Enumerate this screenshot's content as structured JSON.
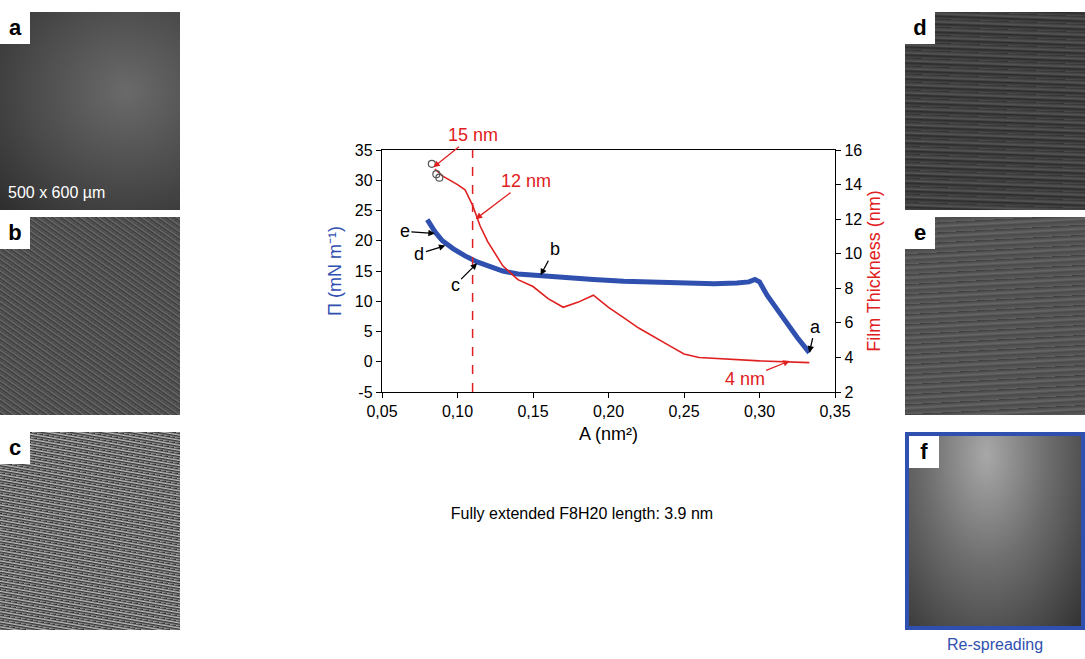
{
  "chart_data": {
    "type": "line",
    "xlabel": "A (nm²)",
    "ylabel": "Π (mN m⁻¹)",
    "y2label": "Film Thickness (nm)",
    "xlim": [
      0.05,
      0.35
    ],
    "xticks": [
      {
        "value": 0.05,
        "label": "0,05"
      },
      {
        "value": 0.1,
        "label": "0,10"
      },
      {
        "value": 0.15,
        "label": "0,15"
      },
      {
        "value": 0.2,
        "label": "0,20"
      },
      {
        "value": 0.25,
        "label": "0,25"
      },
      {
        "value": 0.3,
        "label": "0,30"
      },
      {
        "value": 0.35,
        "label": "0,35"
      }
    ],
    "ylim": [
      -5,
      35
    ],
    "yticks": [
      -5,
      0,
      5,
      10,
      15,
      20,
      25,
      30,
      35
    ],
    "y2lim": [
      2,
      16
    ],
    "y2ticks": [
      2,
      4,
      6,
      8,
      10,
      12,
      14,
      16
    ],
    "grid": false,
    "series": [
      {
        "color": "#3050b0",
        "axis": "y",
        "line_style": "solid",
        "x": [
          0.333,
          0.325,
          0.315,
          0.305,
          0.3,
          0.297,
          0.293,
          0.285,
          0.27,
          0.25,
          0.23,
          0.21,
          0.19,
          0.17,
          0.155,
          0.14,
          0.13,
          0.12,
          0.113,
          0.105,
          0.097,
          0.09,
          0.085,
          0.08
        ],
        "values": [
          1.5,
          4,
          7.5,
          11,
          13.2,
          13.6,
          13.2,
          13,
          12.9,
          13,
          13.1,
          13.3,
          13.6,
          14,
          14.3,
          14.5,
          15,
          15.8,
          16.5,
          17.5,
          18.7,
          20,
          21.5,
          23.5
        ]
      },
      {
        "color": "#e02020",
        "axis": "y2",
        "line_style": "solid",
        "x": [
          0.333,
          0.3,
          0.26,
          0.25,
          0.24,
          0.22,
          0.21,
          0.2,
          0.19,
          0.18,
          0.17,
          0.16,
          0.15,
          0.14,
          0.13,
          0.12,
          0.115,
          0.11,
          0.105,
          0.1,
          0.09,
          0.085
        ],
        "values": [
          3.7,
          3.8,
          4.0,
          4.2,
          4.7,
          5.7,
          6.3,
          6.9,
          7.6,
          7.2,
          6.9,
          7.4,
          8.1,
          8.5,
          9.3,
          10.7,
          11.6,
          12.8,
          13.7,
          14.0,
          14.5,
          14.9
        ]
      },
      {
        "type": "scatter",
        "marker": "open circle",
        "color": "#555555",
        "axis": "y2",
        "x": [
          0.083,
          0.086,
          0.088
        ],
        "values": [
          15.2,
          14.6,
          14.4
        ]
      }
    ],
    "reference_lines": [
      {
        "x": 0.11,
        "color": "#e02020",
        "line_style": "dash"
      }
    ],
    "annotations": [
      {
        "text": "15 nm",
        "x": 0.084,
        "y": 15.0,
        "axis": "y2",
        "color": "#e02020"
      },
      {
        "text": "12 nm",
        "x": 0.112,
        "y": 12.0,
        "axis": "y2",
        "color": "#e02020"
      },
      {
        "text": "4 nm",
        "x": 0.32,
        "y": 3.8,
        "axis": "y2",
        "color": "#e02020"
      },
      {
        "text": "a",
        "x": 0.333,
        "y": 1.5,
        "axis": "y",
        "color": "#000000"
      },
      {
        "text": "b",
        "x": 0.155,
        "y": 14.3,
        "axis": "y",
        "color": "#000000"
      },
      {
        "text": "c",
        "x": 0.113,
        "y": 16.3,
        "axis": "y",
        "color": "#000000"
      },
      {
        "text": "d",
        "x": 0.092,
        "y": 19.2,
        "axis": "y",
        "color": "#000000"
      },
      {
        "text": "e",
        "x": 0.085,
        "y": 21.2,
        "axis": "y",
        "color": "#000000"
      }
    ],
    "caption": "Fully extended F8H20 length: 3.9 nm"
  },
  "panels": [
    {
      "label": "a",
      "scale_text": "500 x 600 µm"
    },
    {
      "label": "b"
    },
    {
      "label": "c"
    },
    {
      "label": "d"
    },
    {
      "label": "e"
    },
    {
      "label": "f",
      "caption": "Re-spreading",
      "color": "#3050b0"
    }
  ]
}
